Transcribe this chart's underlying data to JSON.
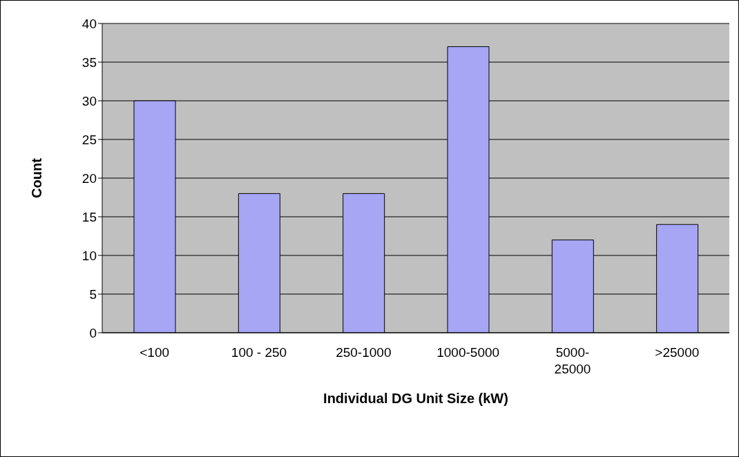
{
  "chart_data": {
    "type": "bar",
    "xlabel": "Individual DG Unit Size (kW)",
    "ylabel": "Count",
    "categories": [
      "<100",
      "100 - 250",
      "250-1000",
      "1000-5000",
      "5000-25000",
      ">25000"
    ],
    "values": [
      30,
      18,
      18,
      37,
      12,
      14
    ],
    "color": "#a6a6f5",
    "ylim": [
      0,
      40
    ],
    "yticks": [
      0,
      5,
      10,
      15,
      20,
      25,
      30,
      35,
      40
    ],
    "grid": "y"
  }
}
